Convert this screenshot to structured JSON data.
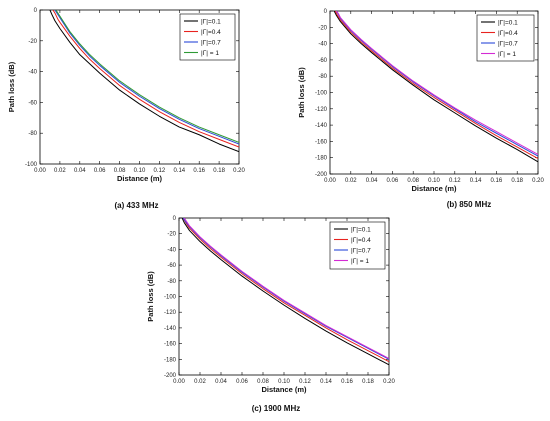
{
  "chart_data": [
    {
      "type": "line",
      "caption": "(a) 433 MHz",
      "xlabel": "Distance (m)",
      "ylabel": "Path loss (dB)",
      "xlim": [
        0.0,
        0.2
      ],
      "ylim": [
        -100,
        0
      ],
      "xticks": [
        "0.00",
        "0.02",
        "0.04",
        "0.06",
        "0.08",
        "0.10",
        "0.12",
        "0.14",
        "0.16",
        "0.18",
        "0.20"
      ],
      "yticks": [
        "0",
        "-20",
        "-40",
        "-60",
        "-80",
        "-100"
      ],
      "legend_position": "top-right",
      "series": [
        {
          "name": "|Γ|=0.1",
          "color": "#000000",
          "x": [
            0.01,
            0.012,
            0.015,
            0.02,
            0.03,
            0.04,
            0.05,
            0.06,
            0.08,
            0.1,
            0.12,
            0.14,
            0.16,
            0.18,
            0.2
          ],
          "y": [
            0,
            -3,
            -7,
            -12,
            -21,
            -29,
            -35,
            -41,
            -52,
            -61,
            -69,
            -76,
            -81,
            -87,
            -92
          ]
        },
        {
          "name": "|Γ|=0.4",
          "color": "#e8231f",
          "x": [
            0.013,
            0.015,
            0.018,
            0.02,
            0.03,
            0.04,
            0.05,
            0.06,
            0.08,
            0.1,
            0.12,
            0.14,
            0.16,
            0.18,
            0.2
          ],
          "y": [
            0,
            -2,
            -6,
            -8,
            -17,
            -25,
            -32,
            -38,
            -49,
            -58,
            -66,
            -73,
            -79,
            -84,
            -89
          ]
        },
        {
          "name": "|Γ|=0.7",
          "color": "#2b49d8",
          "x": [
            0.015,
            0.017,
            0.02,
            0.03,
            0.04,
            0.05,
            0.06,
            0.08,
            0.1,
            0.12,
            0.14,
            0.16,
            0.18,
            0.2
          ],
          "y": [
            0,
            -2,
            -5,
            -15,
            -23,
            -30,
            -36,
            -47,
            -56,
            -64,
            -71,
            -77,
            -82,
            -87
          ]
        },
        {
          "name": "|Γ| = 1",
          "color": "#2e9a35",
          "x": [
            0.016,
            0.018,
            0.02,
            0.03,
            0.04,
            0.05,
            0.06,
            0.08,
            0.1,
            0.12,
            0.14,
            0.16,
            0.18,
            0.2
          ],
          "y": [
            0,
            -2,
            -4,
            -14,
            -22,
            -29,
            -35,
            -46,
            -55,
            -63,
            -70,
            -76,
            -81,
            -86
          ]
        }
      ]
    },
    {
      "type": "line",
      "caption": "(b) 850 MHz",
      "xlabel": "Distance (m)",
      "ylabel": "Path loss (dB)",
      "xlim": [
        0.0,
        0.2
      ],
      "ylim": [
        -200,
        0
      ],
      "xticks": [
        "0.00",
        "0.02",
        "0.04",
        "0.06",
        "0.08",
        "0.10",
        "0.12",
        "0.14",
        "0.16",
        "0.18",
        "0.20"
      ],
      "yticks": [
        "0",
        "-20",
        "-40",
        "-60",
        "-80",
        "-100",
        "-120",
        "-140",
        "-160",
        "-180",
        "-200"
      ],
      "legend_position": "top-right",
      "series": [
        {
          "name": "|Γ|=0.1",
          "color": "#000000",
          "x": [
            0.004,
            0.006,
            0.01,
            0.02,
            0.03,
            0.04,
            0.06,
            0.08,
            0.1,
            0.12,
            0.14,
            0.16,
            0.18,
            0.2
          ],
          "y": [
            0,
            -5,
            -13,
            -28,
            -40,
            -51,
            -72,
            -91,
            -109,
            -125,
            -141,
            -156,
            -170,
            -185
          ]
        },
        {
          "name": "|Γ|=0.4",
          "color": "#e8231f",
          "x": [
            0.005,
            0.007,
            0.01,
            0.02,
            0.03,
            0.04,
            0.06,
            0.08,
            0.1,
            0.12,
            0.14,
            0.16,
            0.18,
            0.2
          ],
          "y": [
            0,
            -5,
            -11,
            -26,
            -38,
            -49,
            -70,
            -89,
            -106,
            -122,
            -138,
            -153,
            -167,
            -181
          ]
        },
        {
          "name": "|Γ|=0.7",
          "color": "#2b49d8",
          "x": [
            0.006,
            0.008,
            0.01,
            0.02,
            0.03,
            0.04,
            0.06,
            0.08,
            0.1,
            0.12,
            0.14,
            0.16,
            0.18,
            0.2
          ],
          "y": [
            0,
            -4,
            -9,
            -24,
            -36,
            -47,
            -68,
            -87,
            -104,
            -120,
            -136,
            -150,
            -164,
            -178
          ]
        },
        {
          "name": "|Γ| = 1",
          "color": "#d42bd4",
          "x": [
            0.006,
            0.008,
            0.01,
            0.02,
            0.03,
            0.04,
            0.06,
            0.08,
            0.1,
            0.12,
            0.14,
            0.16,
            0.18,
            0.2
          ],
          "y": [
            0,
            -3,
            -8,
            -23,
            -35,
            -46,
            -67,
            -86,
            -103,
            -119,
            -134,
            -148,
            -162,
            -176
          ]
        }
      ]
    },
    {
      "type": "line",
      "caption": "(c) 1900 MHz",
      "xlabel": "Distance (m)",
      "ylabel": "Path loss (dB)",
      "xlim": [
        0.0,
        0.2
      ],
      "ylim": [
        -200,
        0
      ],
      "xticks": [
        "0.00",
        "0.02",
        "0.04",
        "0.06",
        "0.08",
        "0.10",
        "0.12",
        "0.14",
        "0.16",
        "0.18",
        "0.20"
      ],
      "yticks": [
        "0",
        "-20",
        "-40",
        "-60",
        "-80",
        "-100",
        "-120",
        "-140",
        "-160",
        "-180",
        "-200"
      ],
      "legend_position": "top-right",
      "series": [
        {
          "name": "|Γ|=0.1",
          "color": "#000000",
          "x": [
            0.003,
            0.005,
            0.01,
            0.02,
            0.03,
            0.04,
            0.06,
            0.08,
            0.1,
            0.12,
            0.14,
            0.16,
            0.18,
            0.2
          ],
          "y": [
            0,
            -6,
            -16,
            -30,
            -42,
            -53,
            -74,
            -93,
            -111,
            -128,
            -144,
            -159,
            -173,
            -187
          ]
        },
        {
          "name": "|Γ|=0.4",
          "color": "#e8231f",
          "x": [
            0.004,
            0.006,
            0.01,
            0.02,
            0.03,
            0.04,
            0.06,
            0.08,
            0.1,
            0.12,
            0.14,
            0.16,
            0.18,
            0.2
          ],
          "y": [
            0,
            -5,
            -13,
            -27,
            -39,
            -50,
            -71,
            -90,
            -108,
            -124,
            -140,
            -155,
            -169,
            -183
          ]
        },
        {
          "name": "|Γ|=0.7",
          "color": "#2b49d8",
          "x": [
            0.004,
            0.006,
            0.01,
            0.02,
            0.03,
            0.04,
            0.06,
            0.08,
            0.1,
            0.12,
            0.14,
            0.16,
            0.18,
            0.2
          ],
          "y": [
            0,
            -4,
            -11,
            -25,
            -37,
            -48,
            -69,
            -88,
            -106,
            -122,
            -138,
            -152,
            -166,
            -180
          ]
        },
        {
          "name": "|Γ| = 1",
          "color": "#d42bd4",
          "x": [
            0.005,
            0.007,
            0.01,
            0.02,
            0.03,
            0.04,
            0.06,
            0.08,
            0.1,
            0.12,
            0.14,
            0.16,
            0.18,
            0.2
          ],
          "y": [
            0,
            -4,
            -10,
            -24,
            -36,
            -47,
            -68,
            -87,
            -105,
            -121,
            -137,
            -151,
            -165,
            -179
          ]
        }
      ]
    }
  ]
}
